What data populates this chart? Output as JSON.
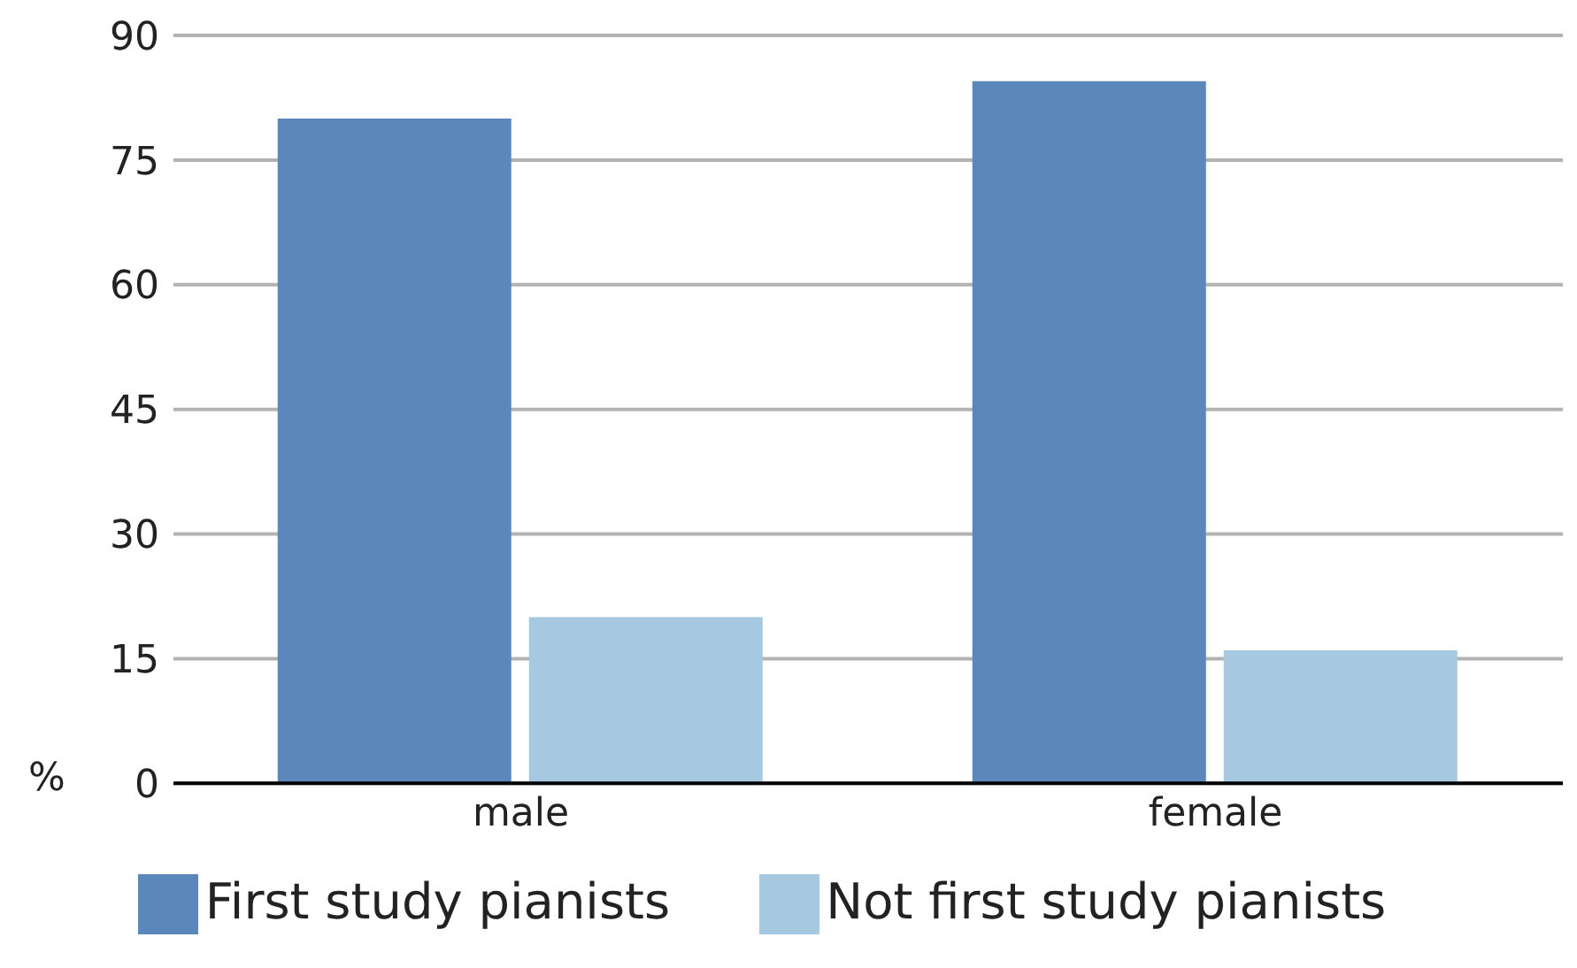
{
  "chart_data": {
    "type": "bar",
    "categories": [
      "male",
      "female"
    ],
    "ylabel": "%",
    "series": [
      {
        "name": "First study pianists",
        "color": "#5b87bb",
        "values": [
          80,
          84.5
        ]
      },
      {
        "name": "Not first study pianists",
        "color": "#a6c8e1",
        "values": [
          20,
          16
        ]
      }
    ],
    "ylim": [
      0,
      90
    ],
    "yticks": [
      0,
      15,
      30,
      45,
      60,
      75,
      90
    ],
    "grid": "y",
    "legend": "bottom"
  }
}
